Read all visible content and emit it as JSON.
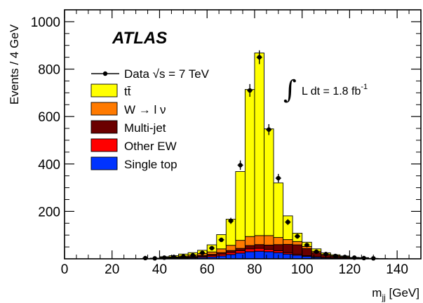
{
  "chart_data": {
    "type": "bar",
    "stacked": true,
    "experiment_label": "ATLAS",
    "xlabel": "m_jj [GeV]",
    "ylabel": "Events / 4 GeV",
    "xlim": [
      0,
      150
    ],
    "ylim": [
      0,
      1050
    ],
    "x_ticks": [
      0,
      20,
      40,
      60,
      80,
      100,
      120,
      140
    ],
    "y_ticks": [
      200,
      400,
      600,
      800,
      1000
    ],
    "luminosity_label": "L dt = 1.8 fb",
    "luminosity_exponent": "-1",
    "bin_width": 4,
    "bin_low_edges": [
      32,
      36,
      40,
      44,
      48,
      52,
      56,
      60,
      64,
      68,
      72,
      76,
      80,
      84,
      88,
      92,
      96,
      100,
      104,
      108,
      112,
      116,
      120,
      124,
      128,
      132,
      136,
      140,
      144
    ],
    "legend_position": "upper-left",
    "series": [
      {
        "name": "Single top",
        "color": "#0033ff",
        "values": [
          0,
          0,
          1,
          2,
          3,
          4,
          6,
          8,
          12,
          18,
          24,
          30,
          32,
          30,
          26,
          20,
          15,
          10,
          6,
          4,
          3,
          2,
          1,
          1,
          0,
          0,
          0,
          0,
          0
        ]
      },
      {
        "name": "Other EW",
        "color": "#ff0000",
        "values": [
          0,
          0,
          1,
          1,
          2,
          3,
          4,
          6,
          8,
          9,
          10,
          12,
          12,
          10,
          8,
          6,
          4,
          3,
          2,
          1,
          1,
          1,
          0,
          0,
          0,
          0,
          0,
          0,
          0
        ]
      },
      {
        "name": "Multi-jet",
        "color": "#6b0000",
        "values": [
          0,
          0,
          2,
          2,
          3,
          3,
          4,
          5,
          6,
          8,
          10,
          14,
          16,
          18,
          26,
          35,
          40,
          30,
          18,
          10,
          6,
          4,
          2,
          1,
          0,
          0,
          0,
          0,
          0
        ]
      },
      {
        "name": "W → l ν",
        "color": "#ff7a00",
        "values": [
          0,
          1,
          2,
          3,
          4,
          6,
          8,
          10,
          16,
          22,
          34,
          38,
          38,
          40,
          30,
          20,
          14,
          9,
          6,
          4,
          3,
          2,
          1,
          1,
          1,
          0,
          0,
          0,
          0
        ]
      },
      {
        "name": "tt̄",
        "color": "#ffff00",
        "values": [
          1,
          2,
          3,
          5,
          8,
          10,
          14,
          30,
          60,
          110,
          290,
          620,
          770,
          450,
          230,
          100,
          35,
          18,
          10,
          6,
          4,
          3,
          2,
          2,
          1,
          1,
          0,
          0,
          0
        ]
      }
    ],
    "data_series": {
      "name": "Data √s = 7 TeV",
      "x": [
        34,
        38,
        42,
        46,
        50,
        54,
        58,
        62,
        66,
        70,
        74,
        78,
        82,
        86,
        90,
        94,
        98,
        102,
        106,
        110,
        114,
        118,
        122,
        126,
        130
      ],
      "y": [
        3,
        2,
        5,
        8,
        10,
        15,
        25,
        45,
        80,
        160,
        395,
        710,
        850,
        545,
        340,
        155,
        95,
        58,
        30,
        20,
        12,
        8,
        5,
        3,
        2
      ],
      "err": [
        2,
        2,
        2,
        3,
        3,
        4,
        5,
        7,
        9,
        13,
        20,
        27,
        29,
        23,
        18,
        12,
        10,
        8,
        5,
        4,
        3,
        3,
        2,
        2,
        1
      ]
    }
  }
}
